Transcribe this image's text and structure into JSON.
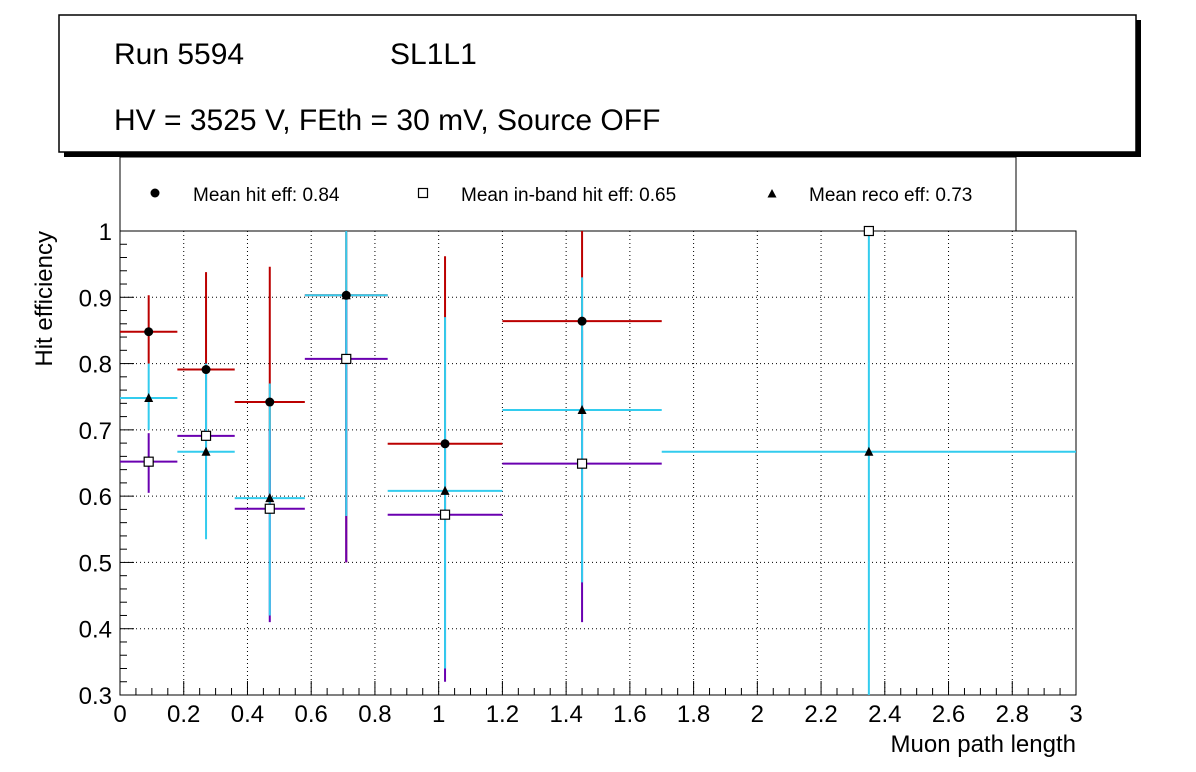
{
  "chart_data": {
    "type": "scatter",
    "title_line1_left": "Run 5594",
    "title_line1_right": "SL1L1",
    "title_line2": "HV = 3525 V, FEth = 30 mV, Source OFF",
    "xlabel": "Muon path length",
    "ylabel": "Hit efficiency",
    "xlim": [
      0,
      3
    ],
    "ylim": [
      0.3,
      1
    ],
    "x_ticks": [
      0,
      0.2,
      0.4,
      0.6,
      0.8,
      1,
      1.2,
      1.4,
      1.6,
      1.8,
      2,
      2.2,
      2.4,
      2.6,
      2.8,
      3
    ],
    "x_tick_labels": [
      "0",
      "0.2",
      "0.4",
      "0.6",
      "0.8",
      "1",
      "1.2",
      "1.4",
      "1.6",
      "1.8",
      "2",
      "2.2",
      "2.4",
      "2.6",
      "2.8",
      "3"
    ],
    "y_ticks": [
      0.3,
      0.4,
      0.5,
      0.6,
      0.7,
      0.8,
      0.9,
      1
    ],
    "y_tick_labels": [
      "0.3",
      "0.4",
      "0.5",
      "0.6",
      "0.7",
      "0.8",
      "0.9",
      "1"
    ],
    "grid": true,
    "legend_position": "top",
    "legend": [
      {
        "label": "Mean hit  eff: 0.84",
        "marker": "filled-circle"
      },
      {
        "label": "Mean in-band hit eff: 0.65",
        "marker": "open-square"
      },
      {
        "label": "Mean reco eff: 0.73",
        "marker": "filled-triangle"
      }
    ],
    "series": [
      {
        "name": "Mean hit eff",
        "marker": "filled-circle",
        "color": "#bb0000",
        "points": [
          {
            "x": 0.09,
            "xerr": 0.09,
            "y": 0.848,
            "ylo": 0.8,
            "yhi": 0.903
          },
          {
            "x": 0.27,
            "xerr": 0.09,
            "y": 0.791,
            "ylo": 0.7,
            "yhi": 0.938
          },
          {
            "x": 0.47,
            "xerr": 0.11,
            "y": 0.742,
            "ylo": 0.6,
            "yhi": 0.946
          },
          {
            "x": 0.71,
            "xerr": 0.13,
            "y": 0.903,
            "ylo": 0.5,
            "yhi": 1.0
          },
          {
            "x": 1.02,
            "xerr": 0.18,
            "y": 0.679,
            "ylo": 0.56,
            "yhi": 0.962
          },
          {
            "x": 1.45,
            "xerr": 0.25,
            "y": 0.864,
            "ylo": 0.7,
            "yhi": 1.0
          }
        ]
      },
      {
        "name": "Mean in-band hit eff",
        "marker": "open-square",
        "color": "#6a00b0",
        "points": [
          {
            "x": 0.09,
            "xerr": 0.09,
            "y": 0.652,
            "ylo": 0.605,
            "yhi": 0.695
          },
          {
            "x": 0.27,
            "xerr": 0.09,
            "y": 0.691,
            "ylo": 0.6,
            "yhi": 0.8
          },
          {
            "x": 0.47,
            "xerr": 0.11,
            "y": 0.581,
            "ylo": 0.41,
            "yhi": 0.7
          },
          {
            "x": 0.71,
            "xerr": 0.13,
            "y": 0.807,
            "ylo": 0.5,
            "yhi": 0.9
          },
          {
            "x": 1.02,
            "xerr": 0.18,
            "y": 0.572,
            "ylo": 0.32,
            "yhi": 0.7
          },
          {
            "x": 1.45,
            "xerr": 0.25,
            "y": 0.649,
            "ylo": 0.41,
            "yhi": 0.85
          },
          {
            "x": 2.35,
            "xerr": 0.0,
            "y": 1.0,
            "ylo": 1.0,
            "yhi": 1.0
          }
        ]
      },
      {
        "name": "Mean reco eff",
        "marker": "filled-triangle",
        "color": "#33ccee",
        "points": [
          {
            "x": 0.09,
            "xerr": 0.09,
            "y": 0.748,
            "ylo": 0.7,
            "yhi": 0.8
          },
          {
            "x": 0.27,
            "xerr": 0.09,
            "y": 0.667,
            "ylo": 0.535,
            "yhi": 0.8
          },
          {
            "x": 0.47,
            "xerr": 0.11,
            "y": 0.597,
            "ylo": 0.42,
            "yhi": 0.77
          },
          {
            "x": 0.71,
            "xerr": 0.13,
            "y": 0.903,
            "ylo": 0.57,
            "yhi": 1.0
          },
          {
            "x": 1.02,
            "xerr": 0.18,
            "y": 0.608,
            "ylo": 0.34,
            "yhi": 0.87
          },
          {
            "x": 1.45,
            "xerr": 0.25,
            "y": 0.73,
            "ylo": 0.47,
            "yhi": 0.93
          },
          {
            "x": 2.35,
            "xerr": 0.65,
            "y": 0.667,
            "ylo": 0.3,
            "yhi": 1.0
          }
        ]
      }
    ]
  }
}
